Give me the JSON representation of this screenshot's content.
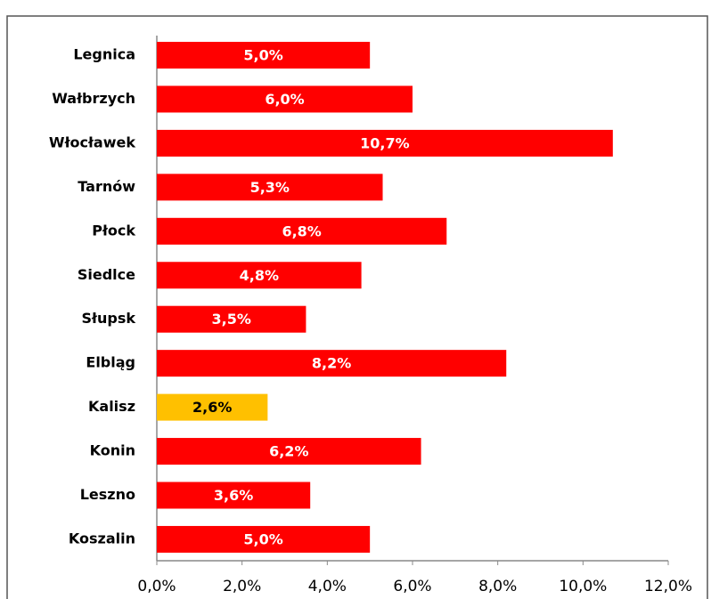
{
  "chart_data": {
    "type": "bar",
    "orientation": "horizontal",
    "categories": [
      "Legnica",
      "Wałbrzych",
      "Włocławek",
      "Tarnów",
      "Płock",
      "Siedlce",
      "Słupsk",
      "Elbląg",
      "Kalisz",
      "Konin",
      "Leszno",
      "Koszalin"
    ],
    "values": [
      5.0,
      6.0,
      10.7,
      5.3,
      6.8,
      4.8,
      3.5,
      8.2,
      2.6,
      6.2,
      3.6,
      5.0
    ],
    "value_labels": [
      "5,0%",
      "6,0%",
      "10,7%",
      "5,3%",
      "6,8%",
      "4,8%",
      "3,5%",
      "8,2%",
      "2,6%",
      "6,2%",
      "3,6%",
      "5,0%"
    ],
    "colors": [
      "#ff0000",
      "#ff0000",
      "#ff0000",
      "#ff0000",
      "#ff0000",
      "#ff0000",
      "#ff0000",
      "#ff0000",
      "#ffc000",
      "#ff0000",
      "#ff0000",
      "#ff0000"
    ],
    "value_label_colors": [
      "#ffffff",
      "#ffffff",
      "#ffffff",
      "#ffffff",
      "#ffffff",
      "#ffffff",
      "#ffffff",
      "#ffffff",
      "#000000",
      "#ffffff",
      "#ffffff",
      "#ffffff"
    ],
    "xlim": [
      0,
      12
    ],
    "xticks": [
      {
        "value": 0,
        "label": "0,0%"
      },
      {
        "value": 2,
        "label": "2,0%"
      },
      {
        "value": 4,
        "label": "4,0%"
      },
      {
        "value": 6,
        "label": "6,0%"
      },
      {
        "value": 8,
        "label": "8,0%"
      },
      {
        "value": 10,
        "label": "10,0%"
      },
      {
        "value": 12,
        "label": "12,0%"
      }
    ],
    "grid": false
  }
}
